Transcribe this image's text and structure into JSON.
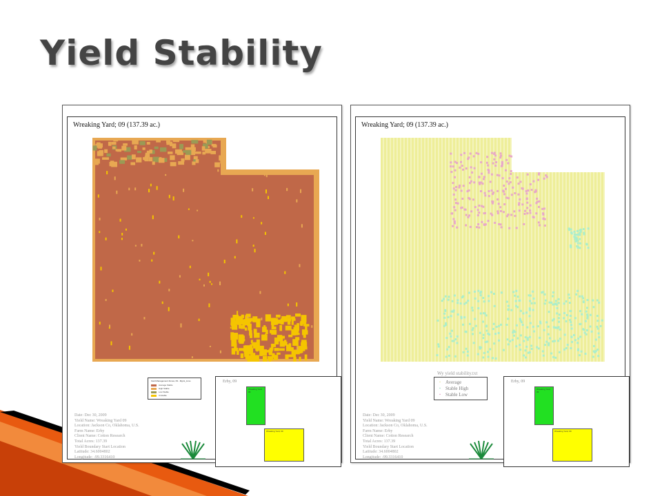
{
  "slide": {
    "title": "Yield Stability"
  },
  "maps": {
    "left": {
      "title": "Wreaking Yard; 09 (137.39 ac.)",
      "legend": {
        "title": "Field Management Zones, 09 - Mgmt_zone",
        "items": [
          {
            "label": "Average Stable",
            "color": "#c06848"
          },
          {
            "label": "High Stable",
            "color": "#e8a852"
          },
          {
            "label": "Low Stable",
            "color": "#9a9a55"
          },
          {
            "label": "Unstable",
            "color": "#f5c500"
          }
        ]
      },
      "inset": {
        "label": "Erby, 09",
        "green_label": "Wreaking Yard, 09",
        "yellow_label": "Wreaking Yard, 09"
      },
      "info": [
        "Date: Dec 30, 2009",
        "Yield Name: Wreaking Yard 09",
        "Location: Jackson Co, Oklahoma, U.S.",
        "Farm Name: Erby",
        "Client Name: Cotton Research",
        "Total Acres: 137.39",
        "Yield Boundary Start Location",
        "Latitude: 34.6004802",
        "Longitude: -99.3316410"
      ]
    },
    "right": {
      "title": "Wreaking Yard; 09 (137.39 ac.)",
      "legend": {
        "title": "Wy yield stability.txt",
        "items": [
          {
            "label": "Average",
            "color": "#eeee99"
          },
          {
            "label": "Stable High",
            "color": "#aaeecc"
          },
          {
            "label": "Stable Low",
            "color": "#e8a8c8"
          }
        ]
      },
      "inset": {
        "label": "Erby, 09",
        "green_label": "Wreaking Yard, 09",
        "yellow_label": "Wreaking Yard, 09"
      },
      "info": [
        "Date: Dec 30, 2009",
        "Yield Name: Wreaking Yard 09",
        "Location: Jackson Co, Oklahoma, U.S.",
        "Farm Name: Erby",
        "Client Name: Cotton Research",
        "Total Acres: 137.39",
        "Yield Boundary Start Location",
        "Latitude: 34.6004802",
        "Longitude: -99.3316410"
      ]
    }
  },
  "colors": {
    "map_left_base": "#c06848",
    "map_left_border": "#e8a852",
    "map_left_yellow": "#f5c500",
    "map_left_olive": "#9a9a55",
    "map_right_base": "#eeee99",
    "map_right_pink": "#e8a8c8",
    "map_right_mint": "#aaeecc",
    "swoosh_orange": "#e85a10",
    "swoosh_black": "#000000"
  }
}
